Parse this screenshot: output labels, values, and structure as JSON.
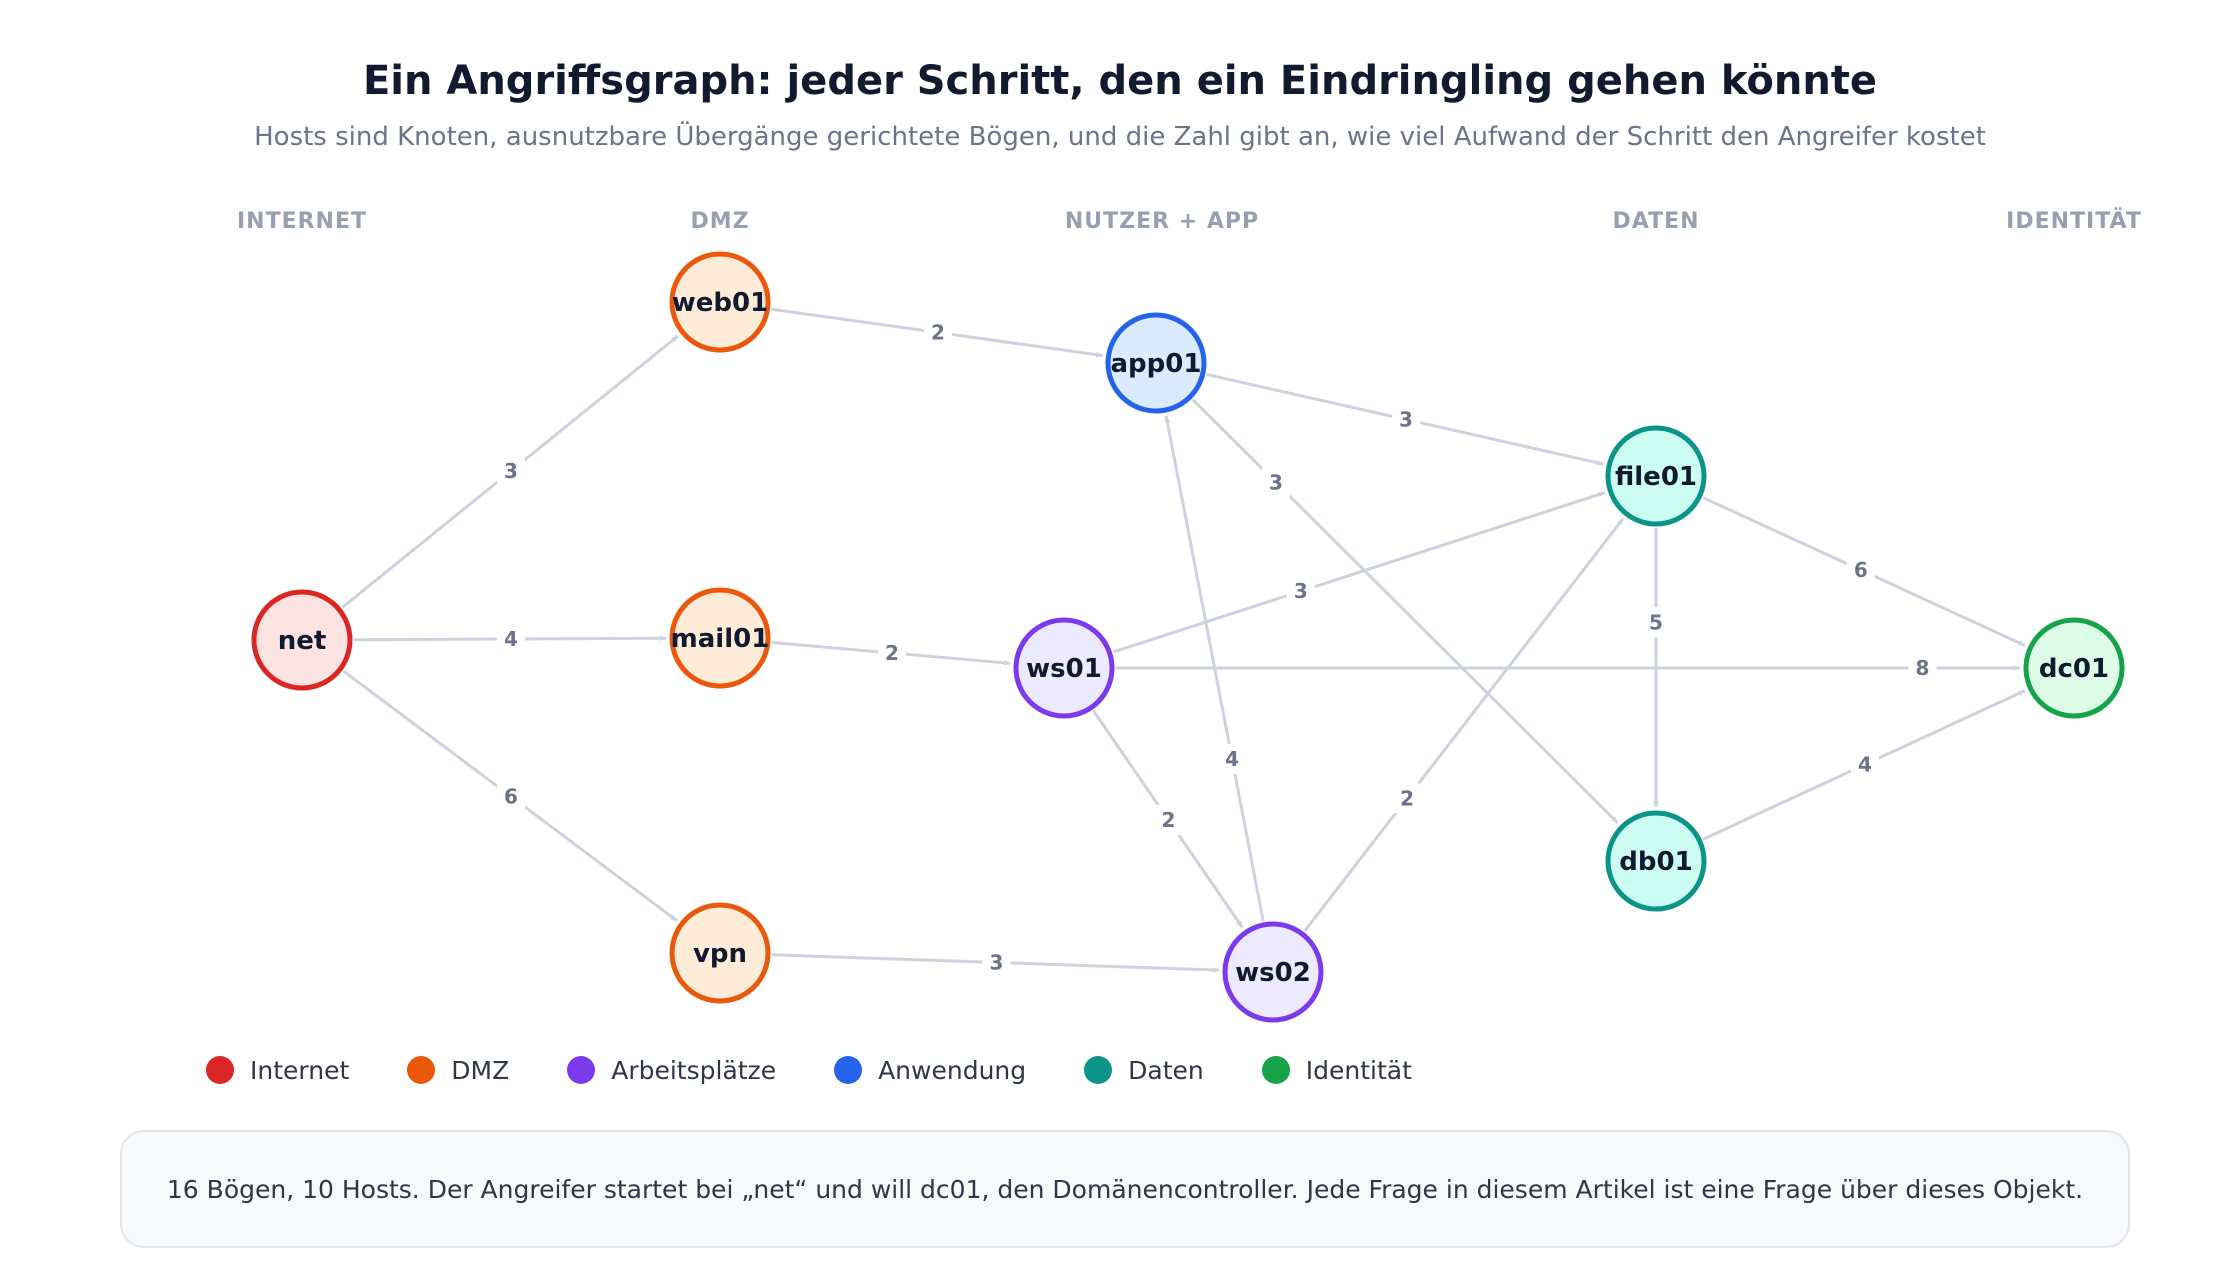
{
  "title": "Ein Angriffsgraph: jeder Schritt, den ein Eindringling gehen könnte",
  "subtitle": "Hosts sind Knoten, ausnutzbare Übergänge gerichtete Bögen, und die Zahl gibt an, wie viel Aufwand der Schritt den Angreifer kostet",
  "columns": [
    "INTERNET",
    "DMZ",
    "NUTZER + APP",
    "DATEN",
    "IDENTITÄT"
  ],
  "colors": {
    "internet": {
      "stroke": "#dc2626",
      "fill": "#fde2e2"
    },
    "dmz": {
      "stroke": "#ea580c",
      "fill": "#feecd8"
    },
    "arbeitsplaetze": {
      "stroke": "#7c3aed",
      "fill": "#ede9fe"
    },
    "anwendung": {
      "stroke": "#2563eb",
      "fill": "#dbeafe"
    },
    "daten": {
      "stroke": "#0d9488",
      "fill": "#ccfbf1"
    },
    "identitaet": {
      "stroke": "#16a34a",
      "fill": "#dcfce7"
    }
  },
  "nodes": [
    {
      "id": "net",
      "label": "net",
      "group": "internet"
    },
    {
      "id": "web01",
      "label": "web01",
      "group": "dmz"
    },
    {
      "id": "mail01",
      "label": "mail01",
      "group": "dmz"
    },
    {
      "id": "vpn",
      "label": "vpn",
      "group": "dmz"
    },
    {
      "id": "app01",
      "label": "app01",
      "group": "anwendung"
    },
    {
      "id": "ws01",
      "label": "ws01",
      "group": "arbeitsplaetze"
    },
    {
      "id": "ws02",
      "label": "ws02",
      "group": "arbeitsplaetze"
    },
    {
      "id": "file01",
      "label": "file01",
      "group": "daten"
    },
    {
      "id": "db01",
      "label": "db01",
      "group": "daten"
    },
    {
      "id": "dc01",
      "label": "dc01",
      "group": "identitaet"
    }
  ],
  "edges": [
    {
      "from": "net",
      "to": "web01",
      "cost": 3
    },
    {
      "from": "net",
      "to": "mail01",
      "cost": 4
    },
    {
      "from": "net",
      "to": "vpn",
      "cost": 6
    },
    {
      "from": "web01",
      "to": "app01",
      "cost": 2
    },
    {
      "from": "mail01",
      "to": "ws01",
      "cost": 2
    },
    {
      "from": "vpn",
      "to": "ws02",
      "cost": 3
    },
    {
      "from": "app01",
      "to": "file01",
      "cost": 3
    },
    {
      "from": "app01",
      "to": "db01",
      "cost": 3
    },
    {
      "from": "ws01",
      "to": "file01",
      "cost": 3
    },
    {
      "from": "ws01",
      "to": "dc01",
      "cost": 8
    },
    {
      "from": "ws01",
      "to": "ws02",
      "cost": 2
    },
    {
      "from": "ws02",
      "to": "app01",
      "cost": 4
    },
    {
      "from": "ws02",
      "to": "file01",
      "cost": 2
    },
    {
      "from": "file01",
      "to": "db01",
      "cost": 5
    },
    {
      "from": "file01",
      "to": "dc01",
      "cost": 6
    },
    {
      "from": "db01",
      "to": "dc01",
      "cost": 4
    }
  ],
  "legend": [
    {
      "label": "Internet",
      "group": "internet"
    },
    {
      "label": "DMZ",
      "group": "dmz"
    },
    {
      "label": "Arbeitsplätze",
      "group": "arbeitsplaetze"
    },
    {
      "label": "Anwendung",
      "group": "anwendung"
    },
    {
      "label": "Daten",
      "group": "daten"
    },
    {
      "label": "Identität",
      "group": "identitaet"
    }
  ],
  "footer": "16 Bögen, 10 Hosts. Der Angreifer startet bei „net“ und will dc01, den Domänencontroller. Jede Frage in diesem Artikel ist eine Frage über dieses Objekt."
}
